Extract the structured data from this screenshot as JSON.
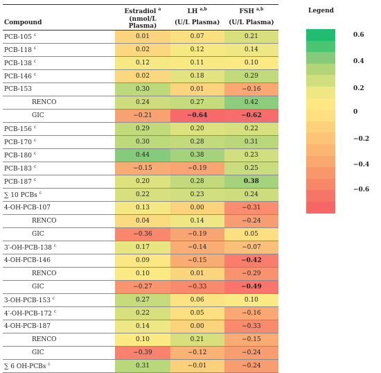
{
  "headers": {
    "compound": "Compound",
    "estradiol": "Estradiol",
    "estradiol_sup": "a",
    "estradiol_unit": "(nmol/L Plasma)",
    "lh": "LH",
    "lh_sup": "a,b",
    "lh_unit": "(U/L Plasma)",
    "fsh": "FSH",
    "fsh_sup": "a,b",
    "fsh_unit": "(U/L Plasma)"
  },
  "rows": [
    {
      "name": "PCB-105",
      "sup": "c",
      "indent": false,
      "vals": [
        "0.01",
        "0.07",
        "0.21"
      ],
      "colors": [
        "#fbd57e",
        "#fbe082",
        "#d8e07e"
      ],
      "bold": [
        false,
        false,
        false
      ]
    },
    {
      "name": "PCB-118",
      "sup": "c",
      "indent": false,
      "vals": [
        "0.02",
        "0.12",
        "0.14"
      ],
      "colors": [
        "#fbd87f",
        "#f6e883",
        "#eee784"
      ],
      "bold": [
        false,
        false,
        false
      ]
    },
    {
      "name": "PCB-138",
      "sup": "c",
      "indent": false,
      "vals": [
        "0.12",
        "0.11",
        "0.10"
      ],
      "colors": [
        "#f6e883",
        "#f8e983",
        "#fbea84"
      ],
      "bold": [
        false,
        false,
        false
      ]
    },
    {
      "name": "PCB-146",
      "sup": "c",
      "indent": false,
      "vals": [
        "0.02",
        "0.18",
        "0.29"
      ],
      "colors": [
        "#fbd87f",
        "#e3e47f",
        "#c1da7c"
      ],
      "bold": [
        false,
        false,
        false
      ]
    },
    {
      "name": "PCB-153",
      "sup": "",
      "indent": false,
      "vals": [
        "0.30",
        "0.01",
        "−0.16"
      ],
      "colors": [
        "#bcd97b",
        "#fbd57e",
        "#f9a873"
      ],
      "bold": [
        false,
        false,
        false
      ]
    },
    {
      "name": "RENCO",
      "sup": "",
      "indent": true,
      "vals": [
        "0.24",
        "0.27",
        "0.42"
      ],
      "colors": [
        "#cddd7e",
        "#c5db7c",
        "#8fcd7e"
      ],
      "bold": [
        false,
        false,
        false
      ]
    },
    {
      "name": "GIC",
      "sup": "",
      "indent": true,
      "vals": [
        "−0.21",
        "−0.64",
        "−0.62"
      ],
      "colors": [
        "#f8a172",
        "#f8696b",
        "#f86d6c"
      ],
      "bold": [
        false,
        true,
        true
      ]
    },
    {
      "name": "PCB-156",
      "sup": "c",
      "indent": false,
      "vals": [
        "0.29",
        "0.20",
        "0.22"
      ],
      "colors": [
        "#c1da7c",
        "#dde27f",
        "#d6e07f"
      ],
      "bold": [
        false,
        false,
        false
      ]
    },
    {
      "name": "PCB-170",
      "sup": "c",
      "indent": false,
      "vals": [
        "0.30",
        "0.28",
        "0.31"
      ],
      "colors": [
        "#bcd97b",
        "#c3da7c",
        "#b9d87b"
      ],
      "bold": [
        false,
        false,
        false
      ]
    },
    {
      "name": "PCB-180",
      "sup": "c",
      "indent": false,
      "vals": [
        "0.44",
        "0.38",
        "0.23"
      ],
      "colors": [
        "#85ca7d",
        "#a5d27d",
        "#d2df7f"
      ],
      "bold": [
        false,
        false,
        false
      ]
    },
    {
      "name": "PCB-183",
      "sup": "c",
      "indent": false,
      "vals": [
        "−0.15",
        "−0.19",
        "0.25"
      ],
      "colors": [
        "#f9ab74",
        "#f9a473",
        "#cadd7e"
      ],
      "bold": [
        false,
        false,
        false
      ]
    },
    {
      "name": "PCB-187",
      "sup": "c",
      "indent": false,
      "vals": [
        "0.20",
        "0.28",
        "0.38"
      ],
      "colors": [
        "#dde27f",
        "#c3da7c",
        "#a5d27d"
      ],
      "bold": [
        false,
        false,
        true
      ]
    },
    {
      "name": "∑ 10 PCBs",
      "sup": "c",
      "indent": false,
      "vals": [
        "0.22",
        "0.23",
        "0.24"
      ],
      "colors": [
        "#d6e07f",
        "#d2df7f",
        "#cddd7e"
      ],
      "bold": [
        false,
        false,
        false
      ]
    },
    {
      "name": "4-OH-PCB-107",
      "sup": "",
      "indent": false,
      "vals": [
        "0.13",
        "0.00",
        "−0.31"
      ],
      "colors": [
        "#f3e883",
        "#fbd37d",
        "#f88e6f"
      ],
      "bold": [
        false,
        false,
        false
      ]
    },
    {
      "name": "RENCO",
      "sup": "",
      "indent": true,
      "vals": [
        "0.04",
        "0.14",
        "−0.24"
      ],
      "colors": [
        "#fbdb80",
        "#eee784",
        "#f89d71"
      ],
      "bold": [
        false,
        false,
        false
      ]
    },
    {
      "name": "GIC",
      "sup": "",
      "indent": true,
      "vals": [
        "−0.36",
        "−0.19",
        "0.05"
      ],
      "colors": [
        "#f8876e",
        "#f9a473",
        "#fbdf81"
      ],
      "bold": [
        false,
        false,
        false
      ]
    },
    {
      "name": "3′-OH-PCB-138",
      "sup": "c",
      "indent": false,
      "vals": [
        "0.17",
        "−0.14",
        "−0.07"
      ],
      "colors": [
        "#e6e580",
        "#f9ad74",
        "#fabf78"
      ],
      "bold": [
        false,
        false,
        false
      ]
    },
    {
      "name": "4-OH-PCB-146",
      "sup": "",
      "indent": false,
      "vals": [
        "0.09",
        "−0.15",
        "−0.42"
      ],
      "colors": [
        "#fbe783",
        "#f9ab74",
        "#f87d6d"
      ],
      "bold": [
        false,
        false,
        true
      ]
    },
    {
      "name": "RENCO",
      "sup": "",
      "indent": true,
      "vals": [
        "0.10",
        "0.01",
        "−0.29"
      ],
      "colors": [
        "#fbea84",
        "#fbd57e",
        "#f8926f"
      ],
      "bold": [
        false,
        false,
        false
      ]
    },
    {
      "name": "GIC",
      "sup": "",
      "indent": true,
      "vals": [
        "−0.27",
        "−0.33",
        "−0.49"
      ],
      "colors": [
        "#f89570",
        "#f88a6e",
        "#f8746c"
      ],
      "bold": [
        false,
        false,
        true
      ]
    },
    {
      "name": "3-OH-PCB-153",
      "sup": "c",
      "indent": false,
      "vals": [
        "0.27",
        "0.06",
        "0.10"
      ],
      "colors": [
        "#c5db7c",
        "#fbe282",
        "#fbea84"
      ],
      "bold": [
        false,
        false,
        false
      ]
    },
    {
      "name": "4′-OH-PCB-172",
      "sup": "c",
      "indent": false,
      "vals": [
        "0.22",
        "0.05",
        "−0.16"
      ],
      "colors": [
        "#d6e07f",
        "#fbdf81",
        "#f9a873"
      ],
      "bold": [
        false,
        false,
        false
      ]
    },
    {
      "name": "4-OH-PCB-187",
      "sup": "",
      "indent": false,
      "vals": [
        "0.14",
        "0.00",
        "−0.33"
      ],
      "colors": [
        "#eee784",
        "#fbd37d",
        "#f88a6e"
      ],
      "bold": [
        false,
        false,
        false
      ]
    },
    {
      "name": "RENCO",
      "sup": "",
      "indent": true,
      "vals": [
        "0.10",
        "0.21",
        "−0.15"
      ],
      "colors": [
        "#fbea84",
        "#d8e07e",
        "#f9ab74"
      ],
      "bold": [
        false,
        false,
        false
      ]
    },
    {
      "name": "GIC",
      "sup": "",
      "indent": true,
      "vals": [
        "−0.39",
        "−0.12",
        "−0.24"
      ],
      "colors": [
        "#f8826d",
        "#fab275",
        "#f89d71"
      ],
      "bold": [
        false,
        false,
        false
      ]
    },
    {
      "name": "∑ 6 OH-PCBs",
      "sup": "c",
      "indent": false,
      "vals": [
        "0.31",
        "−0.01",
        "−0.24"
      ],
      "colors": [
        "#b9d87b",
        "#fbd07d",
        "#f89d71"
      ],
      "bold": [
        false,
        false,
        false
      ]
    }
  ],
  "legend": {
    "title": "Legend",
    "labels": [
      "0.6",
      "0.4",
      "0.2",
      "0",
      "−0.2",
      "−0.4",
      "−0.6"
    ],
    "colors": [
      "#1ebd6f",
      "#4cc572",
      "#86cb79",
      "#b2d57a",
      "#d0de7e",
      "#eee784",
      "#fde883",
      "#fee080",
      "#fdd07b",
      "#fcc476",
      "#fbb671",
      "#f9a86f",
      "#f8976c",
      "#f68769",
      "#f57667",
      "#f46764"
    ]
  }
}
